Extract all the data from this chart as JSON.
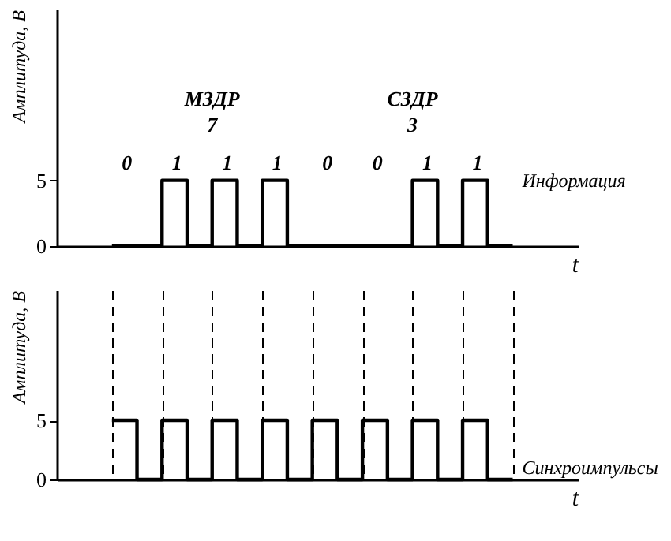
{
  "chart_data": [
    {
      "type": "step",
      "ylabel": "Амплитуда, В",
      "xlabel": "t",
      "ylim": [
        0,
        18
      ],
      "yticks": [
        0,
        5
      ],
      "tick_labels": "y",
      "grid": false,
      "legend": false,
      "line_style": "solid",
      "categories": [
        null,
        null,
        null,
        null,
        null,
        null,
        null,
        null,
        null,
        null,
        null,
        null,
        null,
        null,
        null,
        null,
        null
      ],
      "series": [
        {
          "name": "Информация",
          "color": "#000000",
          "values": [
            0,
            0,
            5,
            0,
            5,
            0,
            5,
            0,
            0,
            0,
            0,
            0,
            5,
            0,
            5,
            0,
            0
          ]
        }
      ],
      "annotations": [
        "МЗДР",
        "7",
        "СЗДР",
        "3",
        "0",
        "1",
        "1",
        "1",
        "0",
        "0",
        "1",
        "1"
      ]
    },
    {
      "type": "step",
      "ylabel": "Амплитуда, В",
      "xlabel": "t",
      "ylim": [
        0,
        16
      ],
      "yticks": [
        0,
        5
      ],
      "tick_labels": "y",
      "grid": "x",
      "legend": false,
      "line_style": "solid",
      "categories": [
        null,
        null,
        null,
        null,
        null,
        null,
        null,
        null,
        null,
        null,
        null,
        null,
        null,
        null,
        null,
        null,
        null
      ],
      "series": [
        {
          "name": "Синхроимпульсы",
          "color": "#000000",
          "values": [
            5,
            0,
            5,
            0,
            5,
            0,
            5,
            0,
            5,
            0,
            5,
            0,
            5,
            0,
            5,
            0,
            0
          ]
        }
      ]
    }
  ]
}
